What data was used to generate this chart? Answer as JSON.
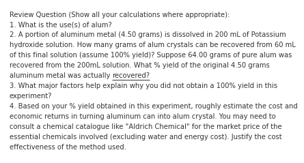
{
  "background_color": "#ffffff",
  "text_color": "#333333",
  "font_size": 7.2,
  "lines": [
    "Review Question (Show all your calculations where appropriate):",
    "1. What is the use(s) of alum?",
    "2. A portion of aluminum metal (4.50 grams) is dissolved in 200 mL of Potassium",
    "hydroxide solution. How many grams of alum crystals can be recovered from 60 mL",
    "of this final solution (assume 100% yield)? Suppose 64.00 grams of pure alum was",
    "recovered from the 200mL solution. What % yield of the original 4.50 grams",
    "aluminum metal was actually recovered?",
    "3. What major factors help explain why you did not obtain a 100% yield in this",
    "experiment?",
    "4. Based on your % yield obtained in this experiment, roughly estimate the cost and",
    "economic returns in turning aluminum can into alum crystal. You may need to",
    "consult a chemical catalogue like \"Aldrich Chemical\" for the market price of the",
    "essential chemicals involved (excluding water and energy cost). Justify the cost",
    "effectiveness of the method used."
  ],
  "underline_line_index": 6,
  "text_before_underline": "aluminum metal was actually ",
  "text_underlined": "recovered?"
}
